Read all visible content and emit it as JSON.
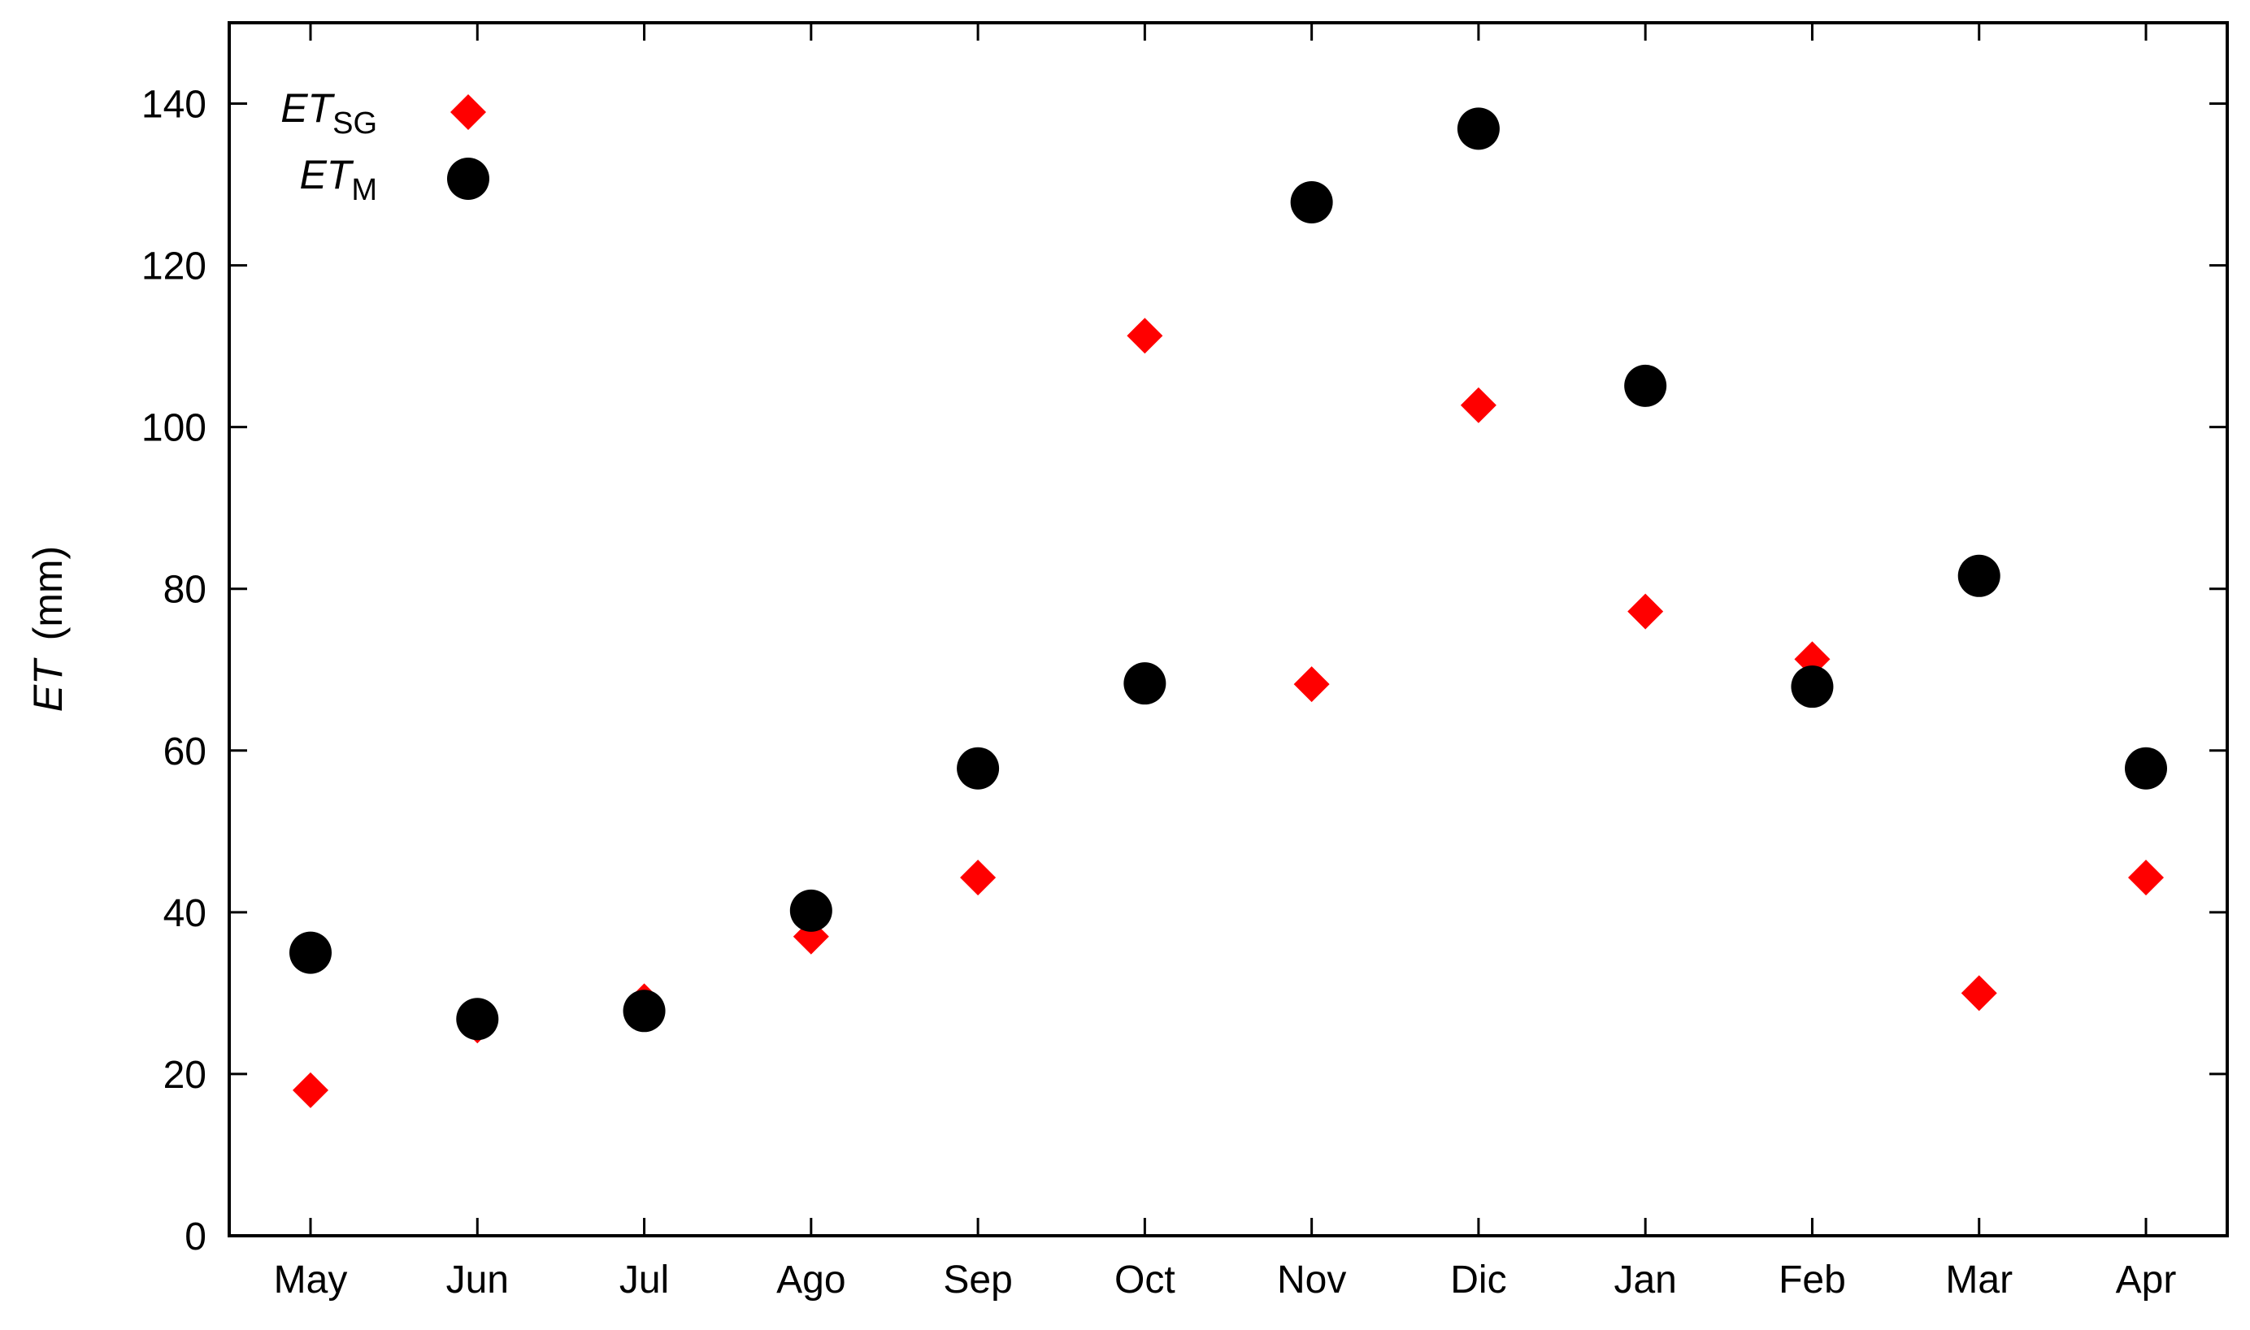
{
  "chart_data": {
    "type": "scatter",
    "categories": [
      "May",
      "Jun",
      "Jul",
      "Ago",
      "Sep",
      "Oct",
      "Nov",
      "Dic",
      "Jan",
      "Feb",
      "Mar",
      "Apr"
    ],
    "series": [
      {
        "name_main": "ET",
        "name_sub": "SG",
        "marker": "diamond",
        "color": "#ff0000",
        "values": [
          18,
          26,
          29,
          37,
          44.3,
          111.3,
          68.2,
          102.7,
          77.2,
          71.3,
          30,
          44.3
        ]
      },
      {
        "name_main": "ET",
        "name_sub": "M",
        "marker": "circle",
        "color": "#000000",
        "values": [
          35,
          26.8,
          27.8,
          40.2,
          57.8,
          68.3,
          127.8,
          136.9,
          105.1,
          67.9,
          81.6,
          57.8
        ]
      }
    ],
    "ylabel_main": "ET",
    "ylabel_unit": "(mm)",
    "ylim": [
      0,
      150
    ],
    "yticks": [
      "0",
      "20",
      "40",
      "60",
      "80",
      "100",
      "120",
      "140"
    ],
    "legend_position": "top-left",
    "grid": false
  }
}
